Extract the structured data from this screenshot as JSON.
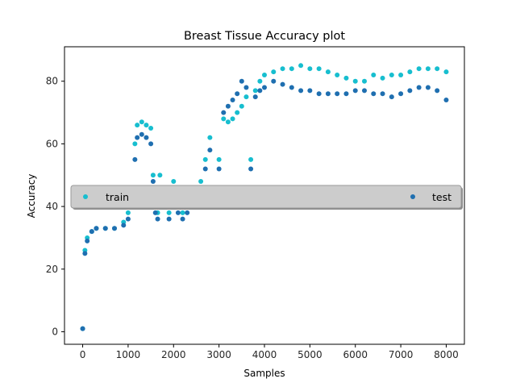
{
  "chart_data": {
    "type": "scatter",
    "title": "Breast Tissue Accuracy plot",
    "xlabel": "Samples",
    "ylabel": "Accuracy",
    "xlim": [
      -400,
      8400
    ],
    "ylim": [
      -4,
      91
    ],
    "xticks": [
      0,
      1000,
      2000,
      3000,
      4000,
      5000,
      6000,
      7000,
      8000
    ],
    "yticks": [
      0,
      20,
      40,
      60,
      80
    ],
    "grid": false,
    "legend_position": "center",
    "series": [
      {
        "name": "train",
        "color": "#17becf",
        "values_by_samples": [
          [
            0,
            1
          ],
          [
            50,
            26
          ],
          [
            100,
            30
          ],
          [
            200,
            32
          ],
          [
            300,
            33
          ],
          [
            500,
            33
          ],
          [
            700,
            33
          ],
          [
            900,
            35
          ],
          [
            1000,
            38
          ],
          [
            1100,
            45
          ],
          [
            1150,
            60
          ],
          [
            1200,
            66
          ],
          [
            1300,
            67
          ],
          [
            1400,
            66
          ],
          [
            1500,
            65
          ],
          [
            1550,
            50
          ],
          [
            1600,
            40
          ],
          [
            1650,
            38
          ],
          [
            1700,
            50
          ],
          [
            1800,
            42
          ],
          [
            1900,
            38
          ],
          [
            2000,
            48
          ],
          [
            2100,
            40
          ],
          [
            2200,
            38
          ],
          [
            2300,
            42
          ],
          [
            2400,
            45
          ],
          [
            2500,
            46
          ],
          [
            2600,
            48
          ],
          [
            2700,
            55
          ],
          [
            2800,
            62
          ],
          [
            2900,
            45
          ],
          [
            3000,
            55
          ],
          [
            3100,
            68
          ],
          [
            3200,
            67
          ],
          [
            3300,
            68
          ],
          [
            3400,
            70
          ],
          [
            3500,
            72
          ],
          [
            3600,
            75
          ],
          [
            3700,
            55
          ],
          [
            3800,
            77
          ],
          [
            3900,
            80
          ],
          [
            4000,
            82
          ],
          [
            4200,
            83
          ],
          [
            4400,
            84
          ],
          [
            4600,
            84
          ],
          [
            4800,
            85
          ],
          [
            5000,
            84
          ],
          [
            5200,
            84
          ],
          [
            5400,
            83
          ],
          [
            5600,
            82
          ],
          [
            5800,
            81
          ],
          [
            6000,
            80
          ],
          [
            6200,
            80
          ],
          [
            6400,
            82
          ],
          [
            6600,
            81
          ],
          [
            6800,
            82
          ],
          [
            7000,
            82
          ],
          [
            7200,
            83
          ],
          [
            7400,
            84
          ],
          [
            7600,
            84
          ],
          [
            7800,
            84
          ],
          [
            8000,
            83
          ]
        ]
      },
      {
        "name": "test",
        "color": "#1f6fb0",
        "values_by_samples": [
          [
            0,
            1
          ],
          [
            50,
            25
          ],
          [
            100,
            29
          ],
          [
            200,
            32
          ],
          [
            300,
            33
          ],
          [
            500,
            33
          ],
          [
            700,
            33
          ],
          [
            900,
            34
          ],
          [
            1000,
            36
          ],
          [
            1100,
            43
          ],
          [
            1150,
            55
          ],
          [
            1200,
            62
          ],
          [
            1300,
            63
          ],
          [
            1400,
            62
          ],
          [
            1500,
            60
          ],
          [
            1550,
            48
          ],
          [
            1600,
            38
          ],
          [
            1650,
            36
          ],
          [
            1700,
            46
          ],
          [
            1800,
            40
          ],
          [
            1900,
            36
          ],
          [
            2000,
            45
          ],
          [
            2100,
            38
          ],
          [
            2200,
            36
          ],
          [
            2300,
            38
          ],
          [
            2400,
            42
          ],
          [
            2500,
            44
          ],
          [
            2600,
            45
          ],
          [
            2700,
            52
          ],
          [
            2800,
            58
          ],
          [
            2900,
            43
          ],
          [
            3000,
            52
          ],
          [
            3100,
            70
          ],
          [
            3200,
            72
          ],
          [
            3300,
            74
          ],
          [
            3400,
            76
          ],
          [
            3500,
            80
          ],
          [
            3600,
            78
          ],
          [
            3700,
            52
          ],
          [
            3800,
            75
          ],
          [
            3900,
            77
          ],
          [
            4000,
            78
          ],
          [
            4200,
            80
          ],
          [
            4400,
            79
          ],
          [
            4600,
            78
          ],
          [
            4800,
            77
          ],
          [
            5000,
            77
          ],
          [
            5200,
            76
          ],
          [
            5400,
            76
          ],
          [
            5600,
            76
          ],
          [
            5800,
            76
          ],
          [
            6000,
            77
          ],
          [
            6200,
            77
          ],
          [
            6400,
            76
          ],
          [
            6600,
            76
          ],
          [
            6800,
            75
          ],
          [
            7000,
            76
          ],
          [
            7200,
            77
          ],
          [
            7400,
            78
          ],
          [
            7600,
            78
          ],
          [
            7800,
            77
          ],
          [
            8000,
            74
          ]
        ]
      }
    ],
    "legend_entries": [
      "train",
      "test"
    ]
  }
}
